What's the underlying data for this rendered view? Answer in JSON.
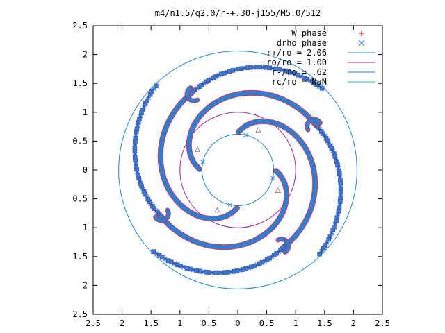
{
  "chart_data": {
    "type": "scatter",
    "title": "m4/n1.5/q2.0/r-+.30-j155/M5.0/512",
    "xlim": [
      -2.5,
      2.5
    ],
    "ylim": [
      -2.5,
      2.5
    ],
    "x_ticks": [
      -2.5,
      -2,
      -1.5,
      -1,
      -0.5,
      0,
      0.5,
      1,
      1.5,
      2,
      2.5
    ],
    "y_ticks": [
      -2.5,
      -2,
      -1.5,
      -1,
      -0.5,
      0,
      0.5,
      1,
      1.5,
      2,
      2.5
    ],
    "x_tick_labels": [
      "2.5",
      "2",
      "1.5",
      "1",
      "0.5",
      "0",
      "0.5",
      "1",
      "1.5",
      "2",
      "2.5"
    ],
    "y_tick_labels": [
      "2.5",
      "2",
      "1.5",
      "1",
      "0.5",
      "0",
      "0.5",
      "1",
      "1.5",
      "2",
      "2.5"
    ],
    "grid": false,
    "legend_position": "top-right",
    "legend": [
      {
        "label": "W phase",
        "symbol": "+",
        "color": "#e0202c"
      },
      {
        "label": "drho phase",
        "symbol": "x",
        "color": "#2b7fd6"
      },
      {
        "label": "r+/ro = 2.06",
        "symbol": "line",
        "color": "#1e88c8"
      },
      {
        "label": "ro/ro = 1.00",
        "symbol": "line",
        "color": "#a020a0"
      },
      {
        "label": "r-/ro = .62",
        "symbol": "line",
        "color": "#1e88c8"
      },
      {
        "label": "rc/ro = NaN",
        "symbol": "line",
        "color": "#22bbc8"
      }
    ],
    "circles": [
      {
        "radius": 2.06,
        "color": "#1e88c8"
      },
      {
        "radius": 1.0,
        "color": "#a020a0"
      },
      {
        "radius": 0.62,
        "color": "#1e88c8"
      }
    ],
    "series": [
      {
        "name": "W phase",
        "color": "#e0202c",
        "pattern": "four-armed spiral phase contours",
        "arms": 4,
        "inner_arm_radii": [
          0.65,
          1.5
        ],
        "outer_arm_radii": [
          1.5,
          2.05
        ]
      },
      {
        "name": "drho phase",
        "color": "#2b7fd6",
        "pattern": "four-armed spiral phase contours",
        "arms": 4,
        "inner_arm_radii": [
          0.65,
          1.5
        ],
        "outer_arm_radii": [
          1.5,
          2.05
        ]
      }
    ]
  }
}
